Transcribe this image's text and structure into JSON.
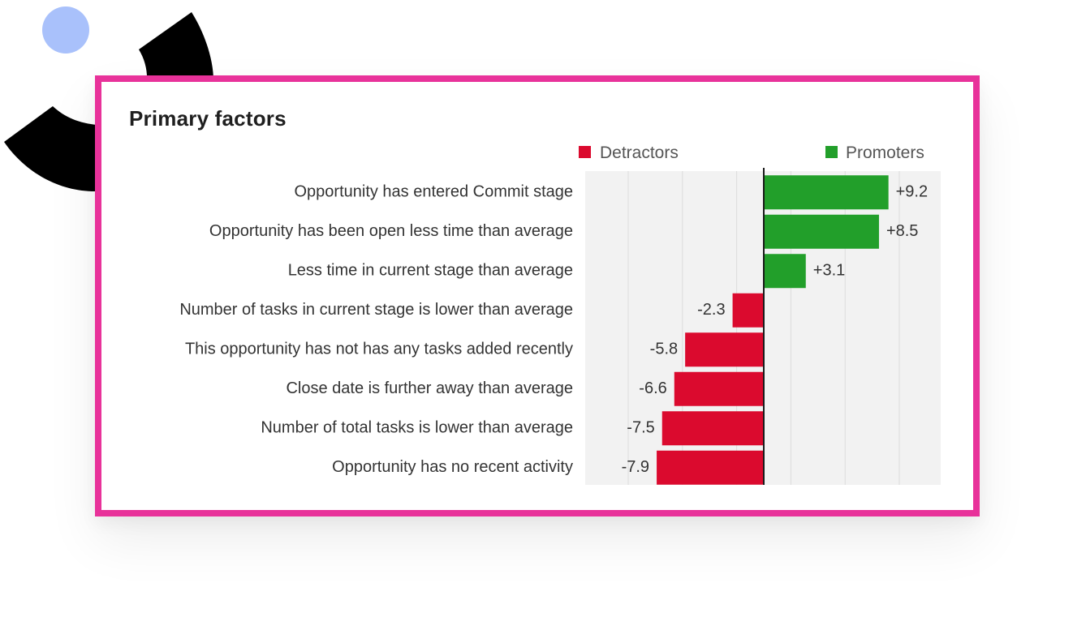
{
  "card": {
    "title": "Primary factors",
    "frame_color": "#e8329a"
  },
  "chart_data": {
    "type": "bar",
    "orientation": "horizontal",
    "title": "Primary factors",
    "xlabel": "",
    "ylabel": "",
    "xlim": [
      -12,
      12
    ],
    "grid": true,
    "legend": {
      "placement": "top",
      "entries": [
        {
          "name": "Detractors",
          "color": "#db0a2e"
        },
        {
          "name": "Promoters",
          "color": "#229f2a"
        }
      ]
    },
    "categories": [
      "Opportunity has entered Commit stage",
      "Opportunity has been open less time than average",
      "Less time in current stage than average",
      "Number of tasks in current stage is lower than average",
      "This opportunity has not has any tasks added recently",
      "Close date is further away than average",
      "Number of total tasks is lower than average",
      "Opportunity has no recent activity"
    ],
    "values": [
      9.2,
      8.5,
      3.1,
      -2.3,
      -5.8,
      -6.6,
      -7.5,
      -7.9
    ],
    "value_labels": [
      "+9.2",
      "+8.5",
      "+3.1",
      "-2.3",
      "-5.8",
      "-6.6",
      "-7.5",
      "-7.9"
    ]
  }
}
